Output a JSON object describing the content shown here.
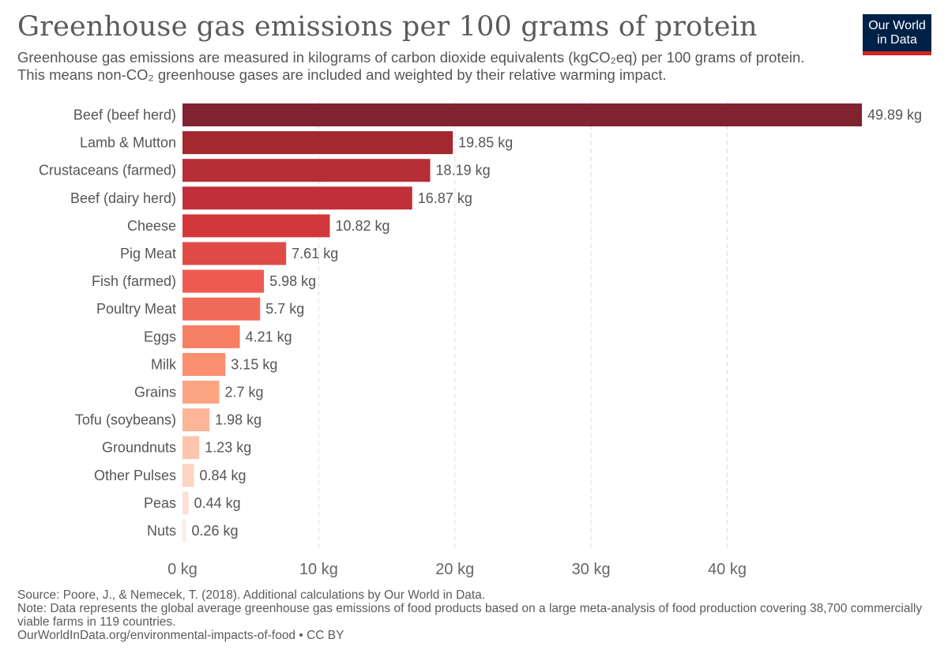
{
  "header": {
    "title": "Greenhouse gas emissions per 100 grams of protein",
    "subtitle": "Greenhouse gas emissions are measured in kilograms of carbon dioxide equivalents (kgCO₂eq) per 100 grams of protein. This means non-CO₂ greenhouse gases are included and weighted by their relative warming impact."
  },
  "logo": {
    "line1": "Our World",
    "line2": "in Data"
  },
  "chart_data": {
    "type": "bar",
    "orientation": "horizontal",
    "categories": [
      "Beef (beef herd)",
      "Lamb & Mutton",
      "Crustaceans (farmed)",
      "Beef (dairy herd)",
      "Cheese",
      "Pig Meat",
      "Fish (farmed)",
      "Poultry Meat",
      "Eggs",
      "Milk",
      "Grains",
      "Tofu (soybeans)",
      "Groundnuts",
      "Other Pulses",
      "Peas",
      "Nuts"
    ],
    "values": [
      49.89,
      19.85,
      18.19,
      16.87,
      10.82,
      7.61,
      5.98,
      5.7,
      4.21,
      3.15,
      2.7,
      1.98,
      1.23,
      0.84,
      0.44,
      0.26
    ],
    "value_labels": [
      "49.89 kg",
      "19.85 kg",
      "18.19 kg",
      "16.87 kg",
      "10.82 kg",
      "7.61 kg",
      "5.98 kg",
      "5.7 kg",
      "4.21 kg",
      "3.15 kg",
      "2.7 kg",
      "1.98 kg",
      "1.23 kg",
      "0.84 kg",
      "0.44 kg",
      "0.26 kg"
    ],
    "colors": [
      "#7f2330",
      "#a3282f",
      "#b52e35",
      "#c13038",
      "#d2383a",
      "#e04b48",
      "#ee5a51",
      "#f26a58",
      "#f67e63",
      "#fa9070",
      "#fba482",
      "#fcb597",
      "#fdc5ad",
      "#fdd3c1",
      "#fde0d3",
      "#feebe2"
    ],
    "xticks": [
      0,
      10,
      20,
      30,
      40
    ],
    "xtick_labels": [
      "0 kg",
      "10 kg",
      "20 kg",
      "30 kg",
      "40 kg"
    ],
    "xlim": [
      0,
      49.89
    ],
    "grid": "vertical dashed"
  },
  "footer": {
    "source": "Source: Poore, J., & Nemecek, T. (2018). Additional calculations by Our World in Data.",
    "note": "Note: Data represents the global average greenhouse gas emissions of food products based on a large meta-analysis of food production covering 38,700 commercially viable farms in 119 countries.",
    "link": "OurWorldInData.org/environmental-impacts-of-food • CC BY"
  }
}
